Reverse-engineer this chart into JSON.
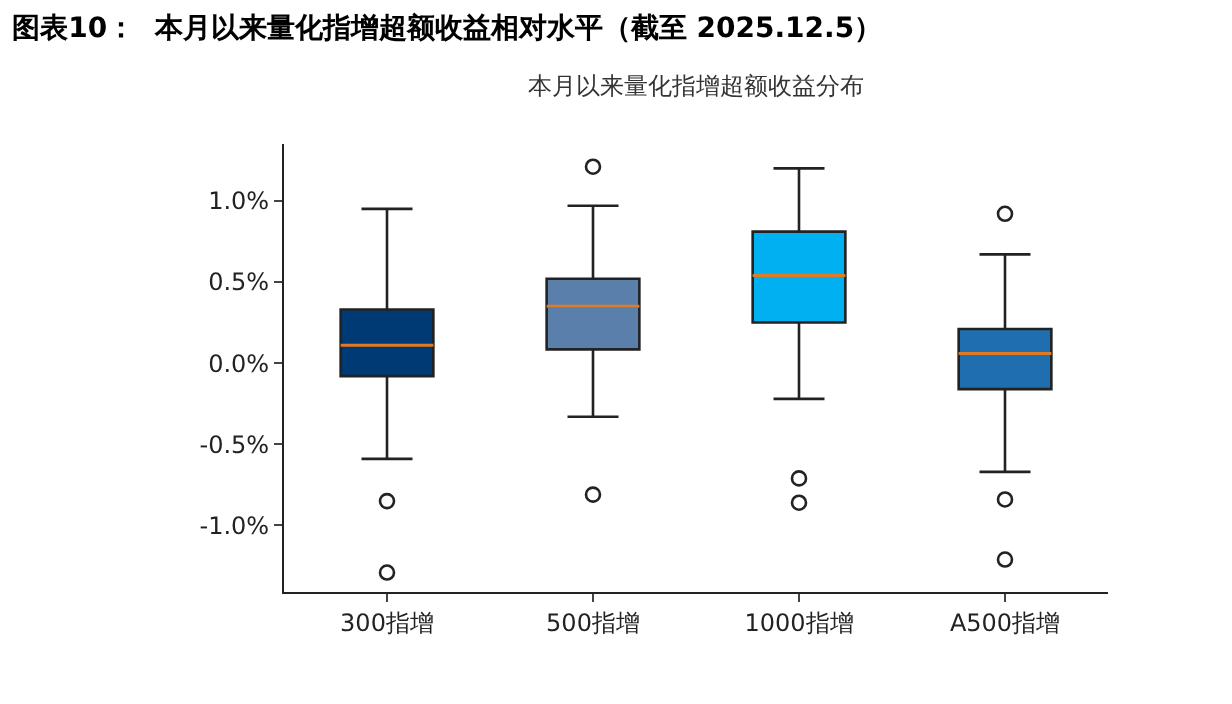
{
  "chart_data": {
    "type": "box",
    "title": "图表10：  本月以来量化指增超额收益相对水平（截至 2025.12.5）",
    "subtitle": "本月以来量化指增超额收益分布",
    "categories": [
      "300指增",
      "500指增",
      "1000指增",
      "A500指增"
    ],
    "colors": [
      "#003a75",
      "#5b7fab",
      "#00b0f0",
      "#1f6fb0"
    ],
    "boxes": [
      {
        "low": -0.59,
        "q1": -0.08,
        "median": 0.11,
        "q3": 0.33,
        "high": 0.95,
        "outliers": [
          -0.85,
          -1.29
        ]
      },
      {
        "low": -0.33,
        "q1": 0.085,
        "median": 0.35,
        "q3": 0.52,
        "high": 0.97,
        "outliers": [
          1.21,
          -0.81
        ]
      },
      {
        "low": -0.22,
        "q1": 0.25,
        "median": 0.54,
        "q3": 0.81,
        "high": 1.2,
        "outliers": [
          -0.71,
          -0.86
        ]
      },
      {
        "low": -0.67,
        "q1": -0.16,
        "median": 0.06,
        "q3": 0.21,
        "high": 0.67,
        "outliers": [
          0.92,
          -0.84,
          -1.21
        ]
      }
    ],
    "ylim": [
      -1.41,
      1.35
    ],
    "yticks": [
      {
        "value": -1,
        "label": "-1.0%"
      },
      {
        "value": -0.5,
        "label": "-0.5%"
      },
      {
        "value": 0,
        "label": "0.0%"
      },
      {
        "value": 0.5,
        "label": "0.5%"
      },
      {
        "value": 1,
        "label": "1.0%"
      }
    ],
    "grid": false
  }
}
